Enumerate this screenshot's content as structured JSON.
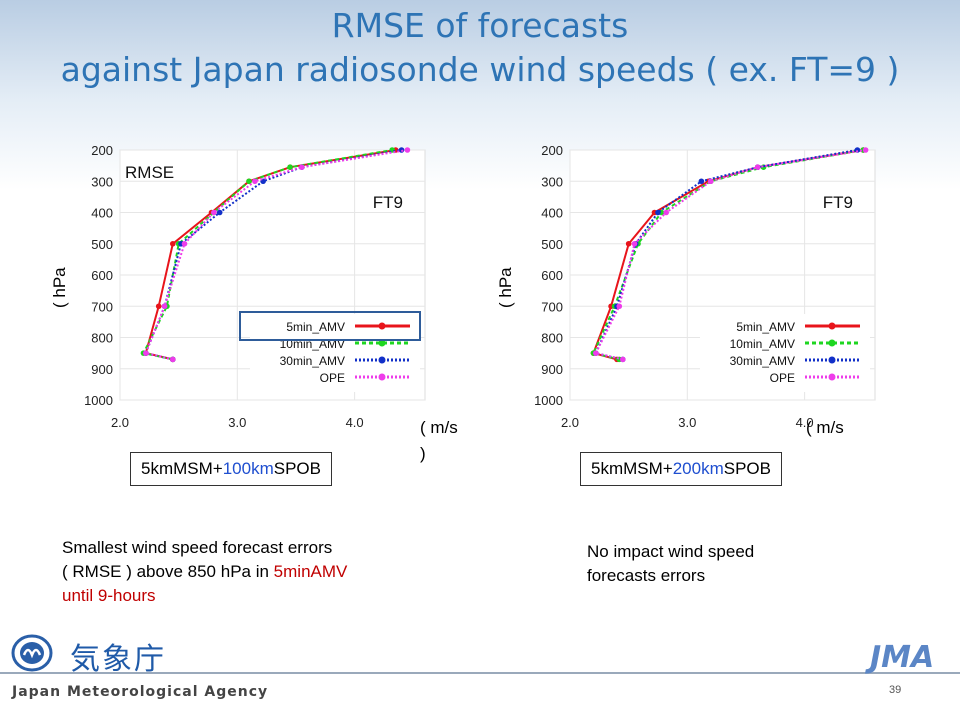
{
  "slide": {
    "title_line1": "RMSE of forecasts",
    "title_line2": "against Japan radiosonde wind speeds ( ex. FT=9 )",
    "left": {
      "hpa_label": "( hPa",
      "ms_label": "( m/s",
      "ms_label_tail": ")",
      "config_prefix": "5kmMSM+",
      "config_highlight": "100km",
      "config_suffix": "SPOB",
      "note_line1": "Smallest wind speed forecast errors",
      "note_line2_a": "( RMSE ) above 850 hPa in ",
      "note_line2_b": "5minAMV",
      "note_line3": "until 9-hours"
    },
    "right": {
      "hpa_label": "( hPa",
      "ms_label": "( m/s",
      "config_prefix": "5kmMSM+",
      "config_highlight": "200km",
      "config_suffix": "SPOB",
      "note_line1": "No impact wind speed",
      "note_line2": "forecasts errors"
    },
    "footer": {
      "kanji": "気象庁",
      "agency": "Japan Meteorological Agency",
      "jma": "JMA",
      "page_number": "39"
    }
  },
  "colors": {
    "title": "#2e74b5",
    "series_5min_AMV": "#e8141b",
    "series_10min_AMV": "#1ed620",
    "series_30min_AMV": "#1230c8",
    "series_OPE": "#ee3cea",
    "highlight_box": "#2e5c9a",
    "note_highlight": "#c00000",
    "config_highlight": "#1f4fd0"
  },
  "chart_data": [
    {
      "type": "line",
      "orientation": "profile",
      "title": "",
      "inner_labels": [
        "RMSE",
        "FT9"
      ],
      "xlabel": "( m/s )",
      "ylabel": "( hPa )",
      "xlim": [
        2.0,
        4.6
      ],
      "ylim": [
        1000,
        200
      ],
      "x_ticks": [
        "2.0",
        "3.0",
        "4.0"
      ],
      "y_ticks": [
        "200",
        "300",
        "400",
        "500",
        "600",
        "700",
        "800",
        "900",
        "1000"
      ],
      "grid": true,
      "legend_position": "bottom-right",
      "legend_highlight": "5min_AMV",
      "series": [
        {
          "name": "5min_AMV",
          "style": "solid",
          "points": [
            [
              2.45,
              870
            ],
            [
              2.22,
              850
            ],
            [
              2.33,
              700
            ],
            [
              2.45,
              500
            ],
            [
              2.78,
              400
            ],
            [
              3.1,
              300
            ],
            [
              3.45,
              255
            ],
            [
              4.35,
              200
            ]
          ]
        },
        {
          "name": "10min_AMV",
          "style": "dashed",
          "points": [
            [
              2.45,
              870
            ],
            [
              2.2,
              850
            ],
            [
              2.4,
              700
            ],
            [
              2.5,
              500
            ],
            [
              2.8,
              400
            ],
            [
              3.1,
              300
            ],
            [
              3.45,
              255
            ],
            [
              4.32,
              200
            ]
          ]
        },
        {
          "name": "30min_AMV",
          "style": "dotted",
          "points": [
            [
              2.45,
              870
            ],
            [
              2.22,
              850
            ],
            [
              2.38,
              700
            ],
            [
              2.52,
              500
            ],
            [
              2.85,
              400
            ],
            [
              3.22,
              300
            ],
            [
              3.55,
              255
            ],
            [
              4.4,
              200
            ]
          ]
        },
        {
          "name": "OPE",
          "style": "dotted",
          "points": [
            [
              2.45,
              870
            ],
            [
              2.22,
              850
            ],
            [
              2.38,
              700
            ],
            [
              2.55,
              500
            ],
            [
              2.8,
              400
            ],
            [
              3.15,
              300
            ],
            [
              3.55,
              255
            ],
            [
              4.45,
              200
            ]
          ]
        }
      ]
    },
    {
      "type": "line",
      "orientation": "profile",
      "title": "",
      "inner_labels": [
        "FT9"
      ],
      "xlabel": "( m/s )",
      "ylabel": "( hPa )",
      "xlim": [
        2.0,
        4.6
      ],
      "ylim": [
        1000,
        200
      ],
      "x_ticks": [
        "2.0",
        "3.0",
        "4.0"
      ],
      "y_ticks": [
        "200",
        "300",
        "400",
        "500",
        "600",
        "700",
        "800",
        "900",
        "1000"
      ],
      "grid": true,
      "legend_position": "bottom-right",
      "series": [
        {
          "name": "5min_AMV",
          "style": "solid",
          "points": [
            [
              2.4,
              870
            ],
            [
              2.2,
              850
            ],
            [
              2.35,
              700
            ],
            [
              2.5,
              500
            ],
            [
              2.72,
              400
            ],
            [
              3.18,
              300
            ],
            [
              3.6,
              255
            ],
            [
              4.5,
              200
            ]
          ]
        },
        {
          "name": "10min_AMV",
          "style": "dashed",
          "points": [
            [
              2.42,
              870
            ],
            [
              2.2,
              850
            ],
            [
              2.38,
              700
            ],
            [
              2.58,
              500
            ],
            [
              2.78,
              400
            ],
            [
              3.2,
              300
            ],
            [
              3.65,
              255
            ],
            [
              4.5,
              200
            ]
          ]
        },
        {
          "name": "30min_AMV",
          "style": "dotted",
          "points": [
            [
              2.45,
              870
            ],
            [
              2.22,
              850
            ],
            [
              2.4,
              700
            ],
            [
              2.56,
              500
            ],
            [
              2.75,
              400
            ],
            [
              3.12,
              300
            ],
            [
              3.6,
              255
            ],
            [
              4.45,
              200
            ]
          ]
        },
        {
          "name": "OPE",
          "style": "dotted",
          "points": [
            [
              2.45,
              870
            ],
            [
              2.22,
              850
            ],
            [
              2.42,
              700
            ],
            [
              2.55,
              500
            ],
            [
              2.82,
              400
            ],
            [
              3.2,
              300
            ],
            [
              3.6,
              255
            ],
            [
              4.52,
              200
            ]
          ]
        }
      ]
    }
  ]
}
